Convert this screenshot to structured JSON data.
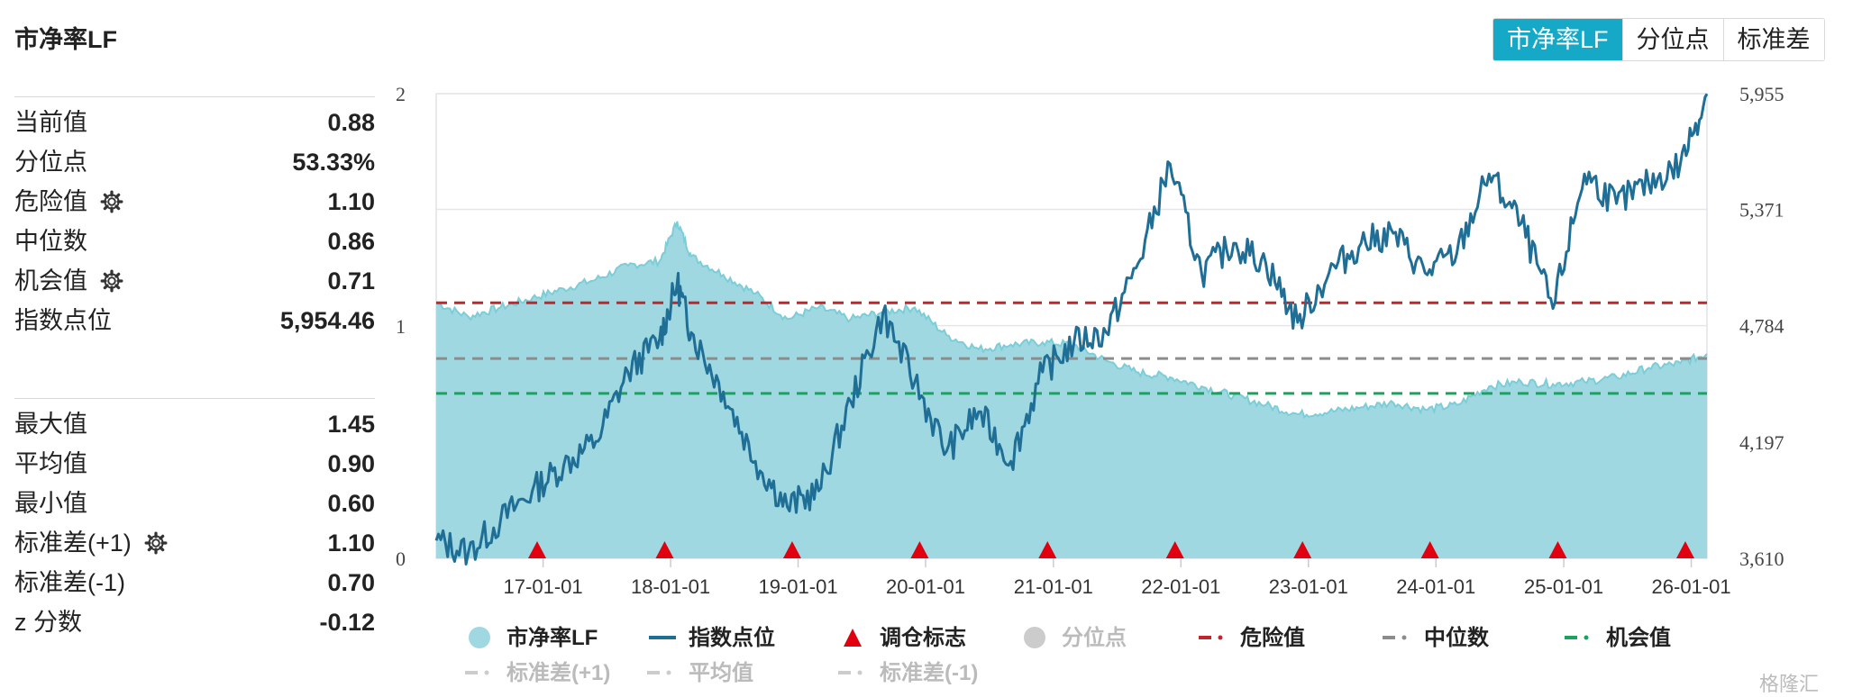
{
  "title": "市净率LF",
  "tabs": [
    {
      "label": "市净率LF",
      "active": true
    },
    {
      "label": "分位点",
      "active": false
    },
    {
      "label": "标准差",
      "active": false
    }
  ],
  "stats_top": [
    {
      "label": "当前值",
      "value": "0.88",
      "gear": false
    },
    {
      "label": "分位点",
      "value": "53.33%",
      "gear": false
    },
    {
      "label": "危险值",
      "value": "1.10",
      "gear": true
    },
    {
      "label": "中位数",
      "value": "0.86",
      "gear": false
    },
    {
      "label": "机会值",
      "value": "0.71",
      "gear": true
    },
    {
      "label": "指数点位",
      "value": "5,954.46",
      "gear": false
    }
  ],
  "stats_bottom": [
    {
      "label": "最大值",
      "value": "1.45",
      "gear": false
    },
    {
      "label": "平均值",
      "value": "0.90",
      "gear": false
    },
    {
      "label": "最小值",
      "value": "0.60",
      "gear": false
    },
    {
      "label": "标准差(+1)",
      "value": "1.10",
      "gear": true
    },
    {
      "label": "标准差(-1)",
      "value": "0.70",
      "gear": false
    },
    {
      "label": "z 分数",
      "value": "-0.12",
      "gear": false
    }
  ],
  "colors": {
    "accent": "#15a9c7",
    "area_fill": "#9fd8e0",
    "area_line": "#7ccdd8",
    "index_line": "#1f6e96",
    "danger": "#c0272d",
    "median": "#8c8c8c",
    "opportunity": "#1aa35a",
    "marker": "#e0000f"
  },
  "watermark": "格隆汇",
  "chart_data": {
    "type": "area",
    "x_tick_labels": [
      "17-01-01",
      "18-01-01",
      "19-01-01",
      "20-01-01",
      "21-01-01",
      "22-01-01",
      "23-01-01",
      "24-01-01",
      "25-01-01",
      "26-01-01"
    ],
    "x_range": [
      "2016-03-01",
      "2026-02-15"
    ],
    "y_left": {
      "ticks": [
        "0",
        "1",
        "2"
      ],
      "range": [
        0,
        2
      ]
    },
    "y_right": {
      "ticks": [
        "3,610",
        "4,197",
        "4,784",
        "5,371",
        "5,955"
      ],
      "range": [
        3610,
        5955
      ]
    },
    "reference_lines": {
      "danger": 1.1,
      "median": 0.86,
      "opportunity": 0.71
    },
    "series": [
      {
        "name": "市净率LF",
        "axis": "left",
        "style": "area",
        "points": [
          [
            "2016-03-01",
            1.1
          ],
          [
            "2016-06-01",
            1.04
          ],
          [
            "2016-09-01",
            1.08
          ],
          [
            "2016-12-01",
            1.12
          ],
          [
            "2017-03-01",
            1.16
          ],
          [
            "2017-06-01",
            1.2
          ],
          [
            "2017-09-01",
            1.26
          ],
          [
            "2017-12-01",
            1.28
          ],
          [
            "2018-01-20",
            1.45
          ],
          [
            "2018-03-01",
            1.3
          ],
          [
            "2018-06-01",
            1.22
          ],
          [
            "2018-09-01",
            1.14
          ],
          [
            "2018-12-01",
            1.03
          ],
          [
            "2019-03-01",
            1.08
          ],
          [
            "2019-06-01",
            1.03
          ],
          [
            "2019-09-01",
            1.06
          ],
          [
            "2019-12-01",
            1.08
          ],
          [
            "2020-03-01",
            0.96
          ],
          [
            "2020-06-01",
            0.9
          ],
          [
            "2020-09-01",
            0.92
          ],
          [
            "2020-12-01",
            0.93
          ],
          [
            "2021-03-01",
            0.92
          ],
          [
            "2021-06-01",
            0.85
          ],
          [
            "2021-09-01",
            0.8
          ],
          [
            "2021-12-01",
            0.78
          ],
          [
            "2022-03-01",
            0.74
          ],
          [
            "2022-06-01",
            0.7
          ],
          [
            "2022-09-01",
            0.66
          ],
          [
            "2022-12-01",
            0.62
          ],
          [
            "2023-03-01",
            0.63
          ],
          [
            "2023-06-01",
            0.65
          ],
          [
            "2023-09-01",
            0.67
          ],
          [
            "2023-12-01",
            0.64
          ],
          [
            "2024-03-01",
            0.66
          ],
          [
            "2024-06-01",
            0.74
          ],
          [
            "2024-09-01",
            0.76
          ],
          [
            "2024-12-01",
            0.75
          ],
          [
            "2025-03-01",
            0.76
          ],
          [
            "2025-06-01",
            0.78
          ],
          [
            "2025-09-01",
            0.82
          ],
          [
            "2025-12-01",
            0.84
          ],
          [
            "2026-02-15",
            0.88
          ]
        ]
      },
      {
        "name": "指数点位",
        "axis": "right",
        "style": "line",
        "points": [
          [
            "2016-03-01",
            3700
          ],
          [
            "2016-06-01",
            3640
          ],
          [
            "2016-09-01",
            3800
          ],
          [
            "2016-12-01",
            3950
          ],
          [
            "2017-03-01",
            4080
          ],
          [
            "2017-06-01",
            4200
          ],
          [
            "2017-09-01",
            4550
          ],
          [
            "2017-12-01",
            4720
          ],
          [
            "2018-01-20",
            5000
          ],
          [
            "2018-03-01",
            4750
          ],
          [
            "2018-06-01",
            4450
          ],
          [
            "2018-09-01",
            4100
          ],
          [
            "2018-12-01",
            3870
          ],
          [
            "2019-03-01",
            3950
          ],
          [
            "2019-06-01",
            4400
          ],
          [
            "2019-09-01",
            4850
          ],
          [
            "2019-12-01",
            4500
          ],
          [
            "2020-03-01",
            4150
          ],
          [
            "2020-06-01",
            4350
          ],
          [
            "2020-09-01",
            4100
          ],
          [
            "2020-12-01",
            4550
          ],
          [
            "2021-03-01",
            4700
          ],
          [
            "2021-06-01",
            4750
          ],
          [
            "2021-09-01",
            5100
          ],
          [
            "2021-12-01",
            5600
          ],
          [
            "2022-03-01",
            5050
          ],
          [
            "2022-06-01",
            5200
          ],
          [
            "2022-09-01",
            5100
          ],
          [
            "2022-12-01",
            4800
          ],
          [
            "2023-03-01",
            5050
          ],
          [
            "2023-06-01",
            5200
          ],
          [
            "2023-09-01",
            5250
          ],
          [
            "2023-12-01",
            5050
          ],
          [
            "2024-03-01",
            5150
          ],
          [
            "2024-06-01",
            5550
          ],
          [
            "2024-09-01",
            5300
          ],
          [
            "2024-12-01",
            4870
          ],
          [
            "2025-03-01",
            5550
          ],
          [
            "2025-06-01",
            5400
          ],
          [
            "2025-09-01",
            5500
          ],
          [
            "2025-12-01",
            5600
          ],
          [
            "2026-02-15",
            5954
          ]
        ]
      }
    ],
    "rebalance_markers": [
      "2016-12-15",
      "2017-12-15",
      "2018-12-15",
      "2019-12-15",
      "2020-12-15",
      "2021-12-15",
      "2022-12-15",
      "2023-12-15",
      "2024-12-15",
      "2025-12-15"
    ],
    "legend": [
      {
        "label": "市净率LF",
        "kind": "circle",
        "color": "#9fd8e0",
        "active": true
      },
      {
        "label": "指数点位",
        "kind": "line",
        "color": "#1f6e96",
        "active": true
      },
      {
        "label": "调仓标志",
        "kind": "triangle",
        "color": "#e0000f",
        "active": true
      },
      {
        "label": "分位点",
        "kind": "circle",
        "color": "#cccccc",
        "active": false
      },
      {
        "label": "危险值",
        "kind": "dash",
        "color": "#c0272d",
        "active": true
      },
      {
        "label": "中位数",
        "kind": "dash",
        "color": "#8c8c8c",
        "active": true
      },
      {
        "label": "机会值",
        "kind": "dash",
        "color": "#1aa35a",
        "active": true
      },
      {
        "label": "标准差(+1)",
        "kind": "dash",
        "color": "#cccccc",
        "active": false
      },
      {
        "label": "平均值",
        "kind": "dash",
        "color": "#cccccc",
        "active": false
      },
      {
        "label": "标准差(-1)",
        "kind": "dash",
        "color": "#cccccc",
        "active": false
      }
    ]
  }
}
